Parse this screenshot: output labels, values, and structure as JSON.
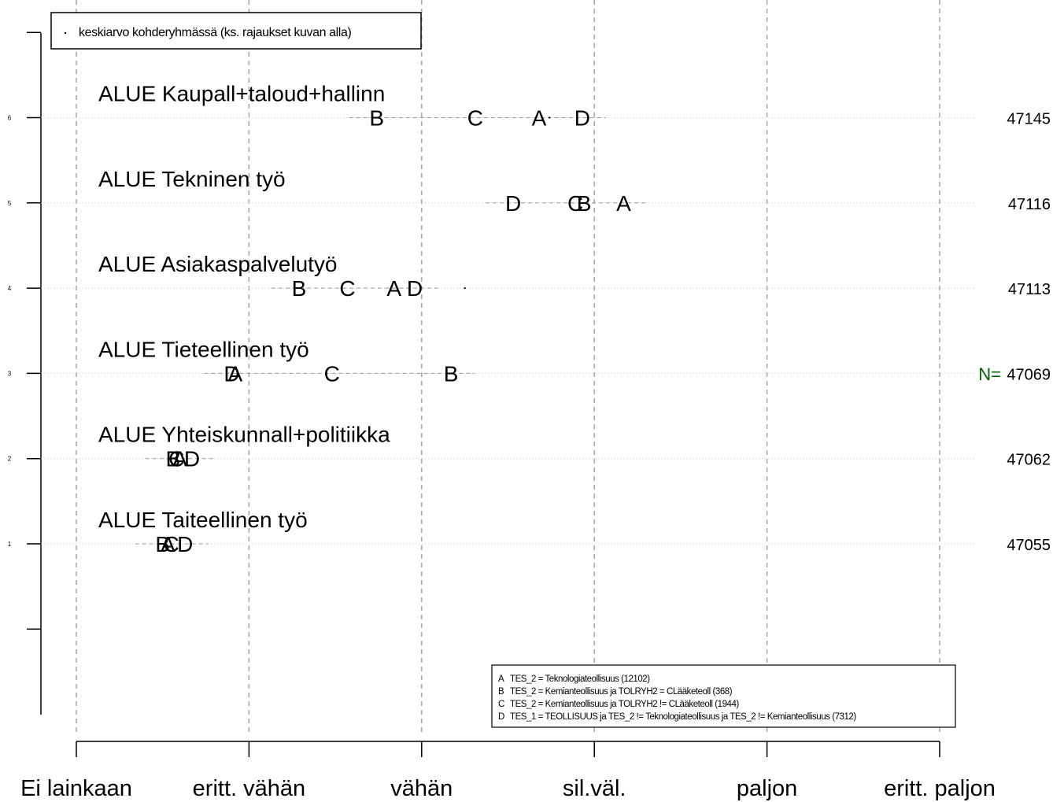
{
  "chart_data": {
    "type": "scatter",
    "x_ticks": [
      "Ei lainkaan",
      "eritt. vähän",
      "vähän",
      "sil.väl.",
      "paljon",
      "eritt. paljon"
    ],
    "xlim": [
      1,
      6
    ],
    "y_ticks": [
      "1",
      "2",
      "3",
      "4",
      "5",
      "6"
    ],
    "legend_top": {
      "position": "top-left",
      "label": "keskiarvo kohderyhmässä (ks. rajaukset kuvan alla)"
    },
    "legend_bottom": {
      "position": "bottom-right",
      "entries": [
        {
          "key": "A",
          "text": "TES_2 = Teknologiateollisuus (12102)"
        },
        {
          "key": "B",
          "text": "TES_2 = Kemianteollisuus ja TOLRYH2 = CLääketeoll (368)"
        },
        {
          "key": "C",
          "text": "TES_2 = Kemianteollisuus ja TOLRYH2 != CLääketeoll (1944)"
        },
        {
          "key": "D",
          "text": "TES_1 = TEOLLISUUS ja  TES_2 != Teknologiateollisuus ja TES_2 != Kemianteollisuus (7312)"
        }
      ]
    },
    "n_label": "N=",
    "rows": [
      {
        "y": 6,
        "label": "ALUE Kaupall+taloud+hallinn",
        "n": "47145",
        "mean": 3.74,
        "points": [
          {
            "group": "A",
            "x": 3.68
          },
          {
            "group": "B",
            "x": 2.74
          },
          {
            "group": "C",
            "x": 3.31
          },
          {
            "group": "D",
            "x": 3.93
          }
        ]
      },
      {
        "y": 5,
        "label": "ALUE Tekninen työ",
        "n": "47116",
        "mean": null,
        "points": [
          {
            "group": "A",
            "x": 4.17
          },
          {
            "group": "B",
            "x": 3.94
          },
          {
            "group": "C",
            "x": 3.89
          },
          {
            "group": "D",
            "x": 3.53
          }
        ]
      },
      {
        "y": 4,
        "label": "ALUE Asiakaspalvelutyö",
        "n": "47113",
        "mean": 3.25,
        "points": [
          {
            "group": "A",
            "x": 2.84
          },
          {
            "group": "B",
            "x": 2.29
          },
          {
            "group": "C",
            "x": 2.57
          },
          {
            "group": "D",
            "x": 2.96
          }
        ]
      },
      {
        "y": 3,
        "label": "ALUE Tieteellinen työ",
        "n": "47069",
        "mean": null,
        "points": [
          {
            "group": "A",
            "x": 1.92
          },
          {
            "group": "B",
            "x": 3.17
          },
          {
            "group": "C",
            "x": 2.48
          },
          {
            "group": "D",
            "x": 1.9
          }
        ]
      },
      {
        "y": 2,
        "label": "ALUE Yhteiskunnall+politiikka",
        "n": "47062",
        "mean": null,
        "points": [
          {
            "group": "A",
            "x": 1.6
          },
          {
            "group": "B",
            "x": 1.56
          },
          {
            "group": "C",
            "x": 1.58
          },
          {
            "group": "D",
            "x": 1.67
          }
        ]
      },
      {
        "y": 1,
        "label": "ALUE Taiteellinen työ",
        "n": "47055",
        "mean": null,
        "points": [
          {
            "group": "A",
            "x": 1.53
          },
          {
            "group": "B",
            "x": 1.5
          },
          {
            "group": "C",
            "x": 1.55
          },
          {
            "group": "D",
            "x": 1.63
          }
        ]
      }
    ]
  }
}
